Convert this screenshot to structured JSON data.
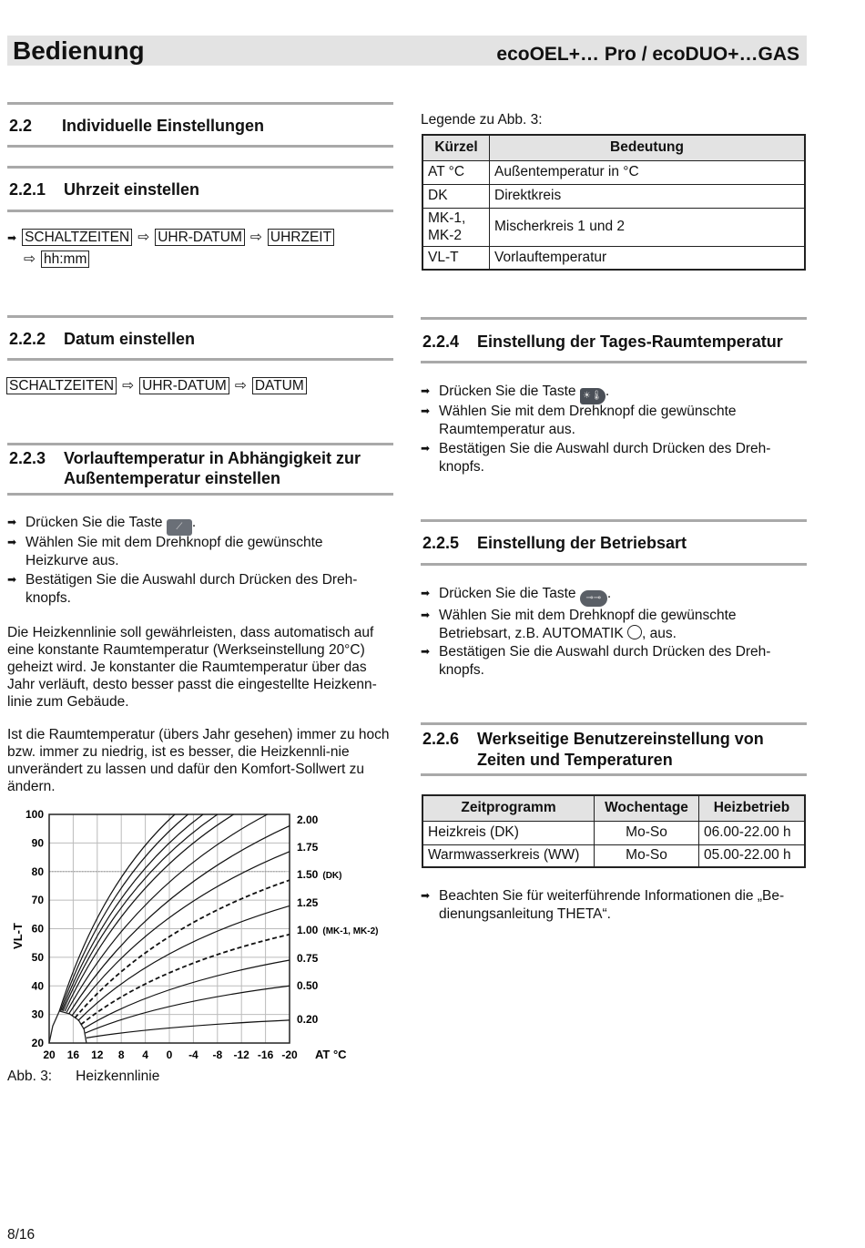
{
  "header": {
    "title": "Bedienung",
    "product": "ecoOEL+… Pro / ecoDUO+…GAS"
  },
  "s22": {
    "num": "2.2",
    "title": "Individuelle Einstellungen"
  },
  "s221": {
    "num": "2.2.1",
    "title": "Uhrzeit einstellen",
    "path": [
      "SCHALTZEITEN",
      "UHR-DATUM",
      "UHRZEIT",
      "hh:mm"
    ]
  },
  "s222": {
    "num": "2.2.2",
    "title": "Datum einstellen",
    "path": [
      "SCHALTZEITEN",
      "UHR-DATUM",
      "DATUM"
    ]
  },
  "s223": {
    "num": "2.2.3",
    "title_l1": "Vorlauftemperatur in Abhängigkeit zur",
    "title_l2": "Außentemperatur einstellen",
    "b1_pre": "Drücken Sie die Taste",
    "b1_post": ".",
    "b2": "Wählen Sie mit dem Drehknopf die gewünschte Heizkurve aus.",
    "b3": "Bestätigen Sie die Auswahl durch Drücken des Dreh-knopfs.",
    "p1": "Die Heizkennlinie soll gewährleisten, dass automatisch auf eine konstante Raumtemperatur (Werkseinstellung 20°C) geheizt wird. Je konstanter die Raumtemperatur über das Jahr verläuft, desto besser passt die eingestellte Heizkenn-linie zum Gebäude.",
    "p2": "Ist die Raumtemperatur (übers Jahr gesehen) immer zu hoch bzw. immer zu niedrig, ist es besser, die Heizkennli-nie unverändert zu lassen und dafür den Komfort-Sollwert zu ändern."
  },
  "legend": {
    "title": "Legende zu Abb. 3:",
    "headers": [
      "Kürzel",
      "Bedeutung"
    ],
    "rows": [
      [
        "AT °C",
        "Außentemperatur in °C"
      ],
      [
        "DK",
        "Direktkreis"
      ],
      [
        "MK-1, MK-2",
        "Mischerkreis 1 und 2"
      ],
      [
        "VL-T",
        "Vorlauftemperatur"
      ]
    ]
  },
  "s224": {
    "num": "2.2.4",
    "title": "Einstellung der Tages-Raumtemperatur",
    "b1_pre": "Drücken Sie die Taste",
    "b1_post": ".",
    "b2": "Wählen Sie mit dem Drehknopf die gewünschte Raumtemperatur aus.",
    "b3": "Bestätigen Sie die Auswahl durch Drücken des Dreh-knopfs."
  },
  "s225": {
    "num": "2.2.5",
    "title": "Einstellung der Betriebsart",
    "b1_pre": "Drücken Sie die Taste",
    "b1_post": ".",
    "b2_pre": "Wählen Sie mit dem Drehknopf die gewünschte Betriebsart, z.B. AUTOMATIK",
    "b2_post": ", aus.",
    "b3": "Bestätigen Sie die Auswahl durch Drücken des Dreh-knopfs."
  },
  "s226": {
    "num": "2.2.6",
    "title_l1": "Werkseitige Benutzereinstellung von",
    "title_l2": "Zeiten und Temperaturen",
    "headers": [
      "Zeitprogramm",
      "Wochentage",
      "Heizbetrieb"
    ],
    "rows": [
      [
        "Heizkreis (DK)",
        "Mo-So",
        "06.00-22.00 h"
      ],
      [
        "Warmwasserkreis (WW)",
        "Mo-So",
        "05.00-22.00 h"
      ]
    ],
    "note": "Beachten Sie für weiterführende Informationen die „Be-dienungsanleitung THETA“."
  },
  "caption": {
    "label": "Abb. 3:",
    "text": "Heizkennlinie"
  },
  "footer": {
    "page": "8/16"
  },
  "chart_data": {
    "type": "line",
    "title": "",
    "xlabel": "AT °C",
    "ylabel": "VL-T",
    "xlim": [
      20,
      -20
    ],
    "ylim": [
      20,
      100
    ],
    "grid": true,
    "xticks": [
      "20",
      "16",
      "12",
      "8",
      "4",
      "0",
      "-4",
      "-8",
      "-12",
      "-16",
      "-20"
    ],
    "yticks": [
      "100",
      "90",
      "80",
      "70",
      "60",
      "50",
      "40",
      "30",
      "20"
    ],
    "curve_labels": [
      "2.00",
      "1.75",
      "1.50 (DK)",
      "1.25",
      "1.00 (MK-1, MK-2)",
      "0.75",
      "0.50",
      "0.20"
    ],
    "reference_line": {
      "y": 80,
      "style": "dotted"
    },
    "boundary_curve": [
      [
        20,
        20
      ],
      [
        19.4,
        26
      ],
      [
        18.3,
        31.2
      ],
      [
        16.6,
        30.2
      ],
      [
        15.1,
        28
      ],
      [
        14.2,
        24.8
      ],
      [
        13.8,
        20
      ]
    ],
    "series": [
      {
        "start": [
          13.8,
          21.8
        ],
        "end": [
          -20,
          28
        ]
      },
      {
        "start": [
          14.0,
          23.5
        ],
        "end": [
          -20,
          40
        ]
      },
      {
        "start": [
          14.3,
          25
        ],
        "end": [
          -20,
          49
        ]
      },
      {
        "start": [
          14.7,
          26.5
        ],
        "end": [
          -20,
          58
        ],
        "dashed": true
      },
      {
        "start": [
          15.2,
          27.8
        ],
        "end": [
          -20,
          68
        ]
      },
      {
        "start": [
          15.7,
          28.8
        ],
        "end": [
          -20,
          77
        ],
        "dashed": true
      },
      {
        "start": [
          16.2,
          29.6
        ],
        "end": [
          -20,
          87
        ]
      },
      {
        "start": [
          16.7,
          30.3
        ],
        "end": [
          -20,
          96
        ]
      },
      {
        "start": [
          17.1,
          30.8
        ],
        "end": [
          -16.3,
          100
        ]
      },
      {
        "start": [
          17.4,
          31.1
        ],
        "end": [
          -10.7,
          100
        ]
      },
      {
        "start": [
          17.7,
          31.2
        ],
        "end": [
          -8,
          100
        ]
      },
      {
        "start": [
          17.9,
          31.3
        ],
        "end": [
          -5.6,
          100
        ]
      },
      {
        "start": [
          18.1,
          31.3
        ],
        "end": [
          -3.1,
          100
        ]
      },
      {
        "start": [
          18.3,
          31.2
        ],
        "end": [
          -0.9,
          100
        ]
      }
    ]
  }
}
